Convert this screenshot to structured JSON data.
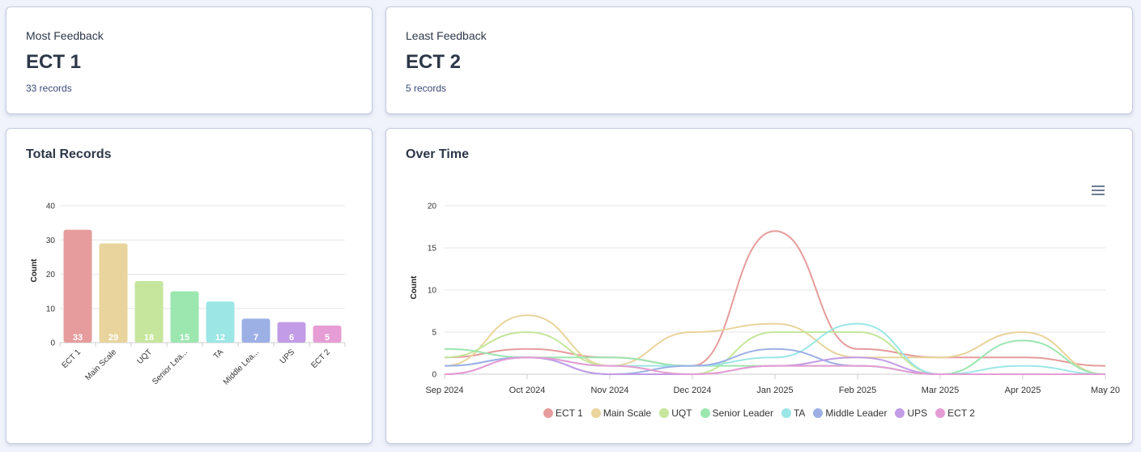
{
  "most_feedback": {
    "label": "Most Feedback",
    "value": "ECT 1",
    "sub": "33 records"
  },
  "least_feedback": {
    "label": "Least Feedback",
    "value": "ECT 2",
    "sub": "5 records"
  },
  "total_records": {
    "title": "Total Records"
  },
  "over_time": {
    "title": "Over Time",
    "menu_icon": "hamburger-menu-icon"
  },
  "chart_data": [
    {
      "type": "bar",
      "title": "Total Records",
      "xlabel": "",
      "ylabel": "Count",
      "ylim": [
        0,
        40
      ],
      "yticks": [
        "0",
        "10",
        "20",
        "30",
        "40"
      ],
      "grid": true,
      "categories": [
        "ECT 1",
        "Main Scale",
        "UQT",
        "Senior Lea...",
        "TA",
        "Middle Lea...",
        "UPS",
        "ECT 2"
      ],
      "values": [
        33,
        29,
        18,
        15,
        12,
        7,
        6,
        5
      ],
      "colors": [
        "#e69c9c",
        "#e8d49c",
        "#c5e69c",
        "#9ce6b0",
        "#9ce6e6",
        "#9cb0e6",
        "#c29ce6",
        "#e69cd4"
      ]
    },
    {
      "type": "line",
      "title": "Over Time",
      "xlabel": "",
      "ylabel": "Count",
      "ylim": [
        0,
        20
      ],
      "yticks": [
        "0",
        "5",
        "10",
        "15",
        "20"
      ],
      "grid": true,
      "legend": "bottom",
      "x": [
        "Sep 2024",
        "Oct 2024",
        "Nov 2024",
        "Dec 2024",
        "Jan 2025",
        "Feb 2025",
        "Mar 2025",
        "Apr 2025",
        "May 20"
      ],
      "series": [
        {
          "name": "ECT 1",
          "color": "#e69c9c",
          "values": [
            2,
            3,
            2,
            1,
            17,
            3,
            2,
            2,
            1
          ]
        },
        {
          "name": "Main Scale",
          "color": "#e8d49c",
          "values": [
            1,
            7,
            1,
            5,
            6,
            2,
            2,
            5,
            0
          ]
        },
        {
          "name": "UQT",
          "color": "#c5e69c",
          "values": [
            2,
            5,
            1,
            0,
            5,
            5,
            0,
            0,
            0
          ]
        },
        {
          "name": "Senior Leader",
          "color": "#9ce6b0",
          "values": [
            3,
            2,
            2,
            1,
            1,
            1,
            0,
            4,
            0
          ]
        },
        {
          "name": "TA",
          "color": "#9ce6e6",
          "values": [
            1,
            2,
            1,
            1,
            2,
            6,
            0,
            1,
            0
          ]
        },
        {
          "name": "Middle Leader",
          "color": "#9cb0e6",
          "values": [
            1,
            2,
            0,
            1,
            3,
            1,
            0,
            0,
            0
          ]
        },
        {
          "name": "UPS",
          "color": "#c29ce6",
          "values": [
            0,
            2,
            0,
            0,
            1,
            2,
            0,
            0,
            0
          ]
        },
        {
          "name": "ECT 2",
          "color": "#e69cd4",
          "values": [
            0,
            2,
            1,
            0,
            1,
            1,
            0,
            0,
            0
          ]
        }
      ]
    }
  ]
}
